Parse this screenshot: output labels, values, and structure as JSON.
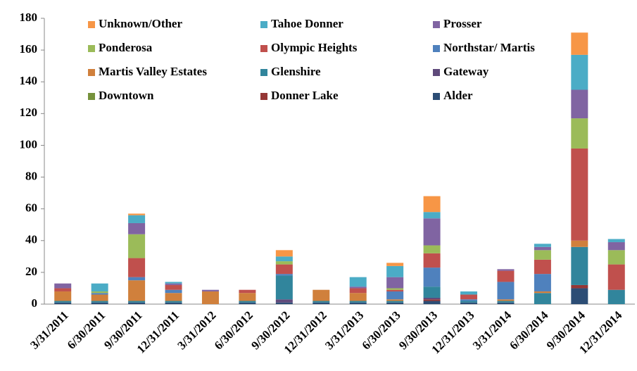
{
  "chart_data": {
    "type": "stacked_bar",
    "categories": [
      "3/31/2011",
      "6/30/2011",
      "9/30/2011",
      "12/31/2011",
      "3/31/2012",
      "6/30/2012",
      "9/30/2012",
      "12/31/2012",
      "3/31/2013",
      "6/30/2013",
      "9/30/2013",
      "12/31/2013",
      "3/31/2014",
      "6/30/2014",
      "9/30/2014",
      "12/31/2014"
    ],
    "series": [
      {
        "name": "Unknown/Other",
        "color": "#f79646",
        "values": [
          0,
          0,
          1,
          0,
          0,
          0,
          4,
          0,
          0,
          2,
          10,
          0,
          0,
          0,
          14,
          0
        ]
      },
      {
        "name": "Tahoe Donner",
        "color": "#4bacc6",
        "values": [
          0,
          5,
          5,
          1,
          0,
          0,
          3,
          0,
          6,
          7,
          4,
          2,
          0,
          2,
          22,
          2
        ]
      },
      {
        "name": "Prosser",
        "color": "#8064a2",
        "values": [
          3,
          0,
          7,
          1,
          1,
          0,
          0,
          0,
          1,
          7,
          17,
          0,
          1,
          2,
          18,
          5
        ]
      },
      {
        "name": "Ponderosa",
        "color": "#9bbb59",
        "values": [
          0,
          1,
          15,
          0,
          0,
          0,
          2,
          0,
          0,
          1,
          5,
          0,
          0,
          6,
          19,
          9
        ]
      },
      {
        "name": "Olympic Heights",
        "color": "#c0504d",
        "values": [
          2,
          0,
          12,
          3,
          0,
          2,
          6,
          0,
          3,
          1,
          9,
          3,
          7,
          9,
          58,
          16
        ]
      },
      {
        "name": "Northstar/ Martis",
        "color": "#4f81bd",
        "values": [
          0,
          1,
          2,
          2,
          0,
          0,
          1,
          0,
          0,
          5,
          12,
          1,
          11,
          11,
          0,
          0
        ]
      },
      {
        "name": "Martis Valley Estates",
        "color": "#d0803c",
        "values": [
          6,
          4,
          13,
          5,
          8,
          5,
          0,
          7,
          5,
          1,
          0,
          0,
          1,
          1,
          4,
          0
        ]
      },
      {
        "name": "Glenshire",
        "color": "#31859c",
        "values": [
          1,
          1,
          1,
          1,
          0,
          1,
          15,
          1,
          1,
          1,
          7,
          1,
          1,
          7,
          24,
          9
        ]
      },
      {
        "name": "Gateway",
        "color": "#5f4a7b",
        "values": [
          0,
          0,
          0,
          0,
          0,
          0,
          2,
          0,
          0,
          0,
          1,
          0,
          0,
          0,
          0,
          0
        ]
      },
      {
        "name": "Downtown",
        "color": "#76923c",
        "values": [
          0,
          0,
          0,
          0,
          0,
          0,
          0,
          0,
          0,
          0,
          0,
          0,
          0,
          0,
          0,
          0
        ]
      },
      {
        "name": "Donner Lake",
        "color": "#953735",
        "values": [
          0,
          0,
          0,
          0,
          0,
          0,
          0,
          0,
          0,
          0,
          1,
          0,
          0,
          0,
          2,
          0
        ]
      },
      {
        "name": "Alder",
        "color": "#2c4d75",
        "values": [
          1,
          1,
          1,
          1,
          0,
          1,
          1,
          1,
          1,
          1,
          2,
          1,
          1,
          0,
          10,
          0
        ]
      }
    ],
    "ylim": [
      0,
      180
    ],
    "yticks": [
      0,
      20,
      40,
      60,
      80,
      100,
      120,
      140,
      160,
      180
    ],
    "grid": false
  }
}
